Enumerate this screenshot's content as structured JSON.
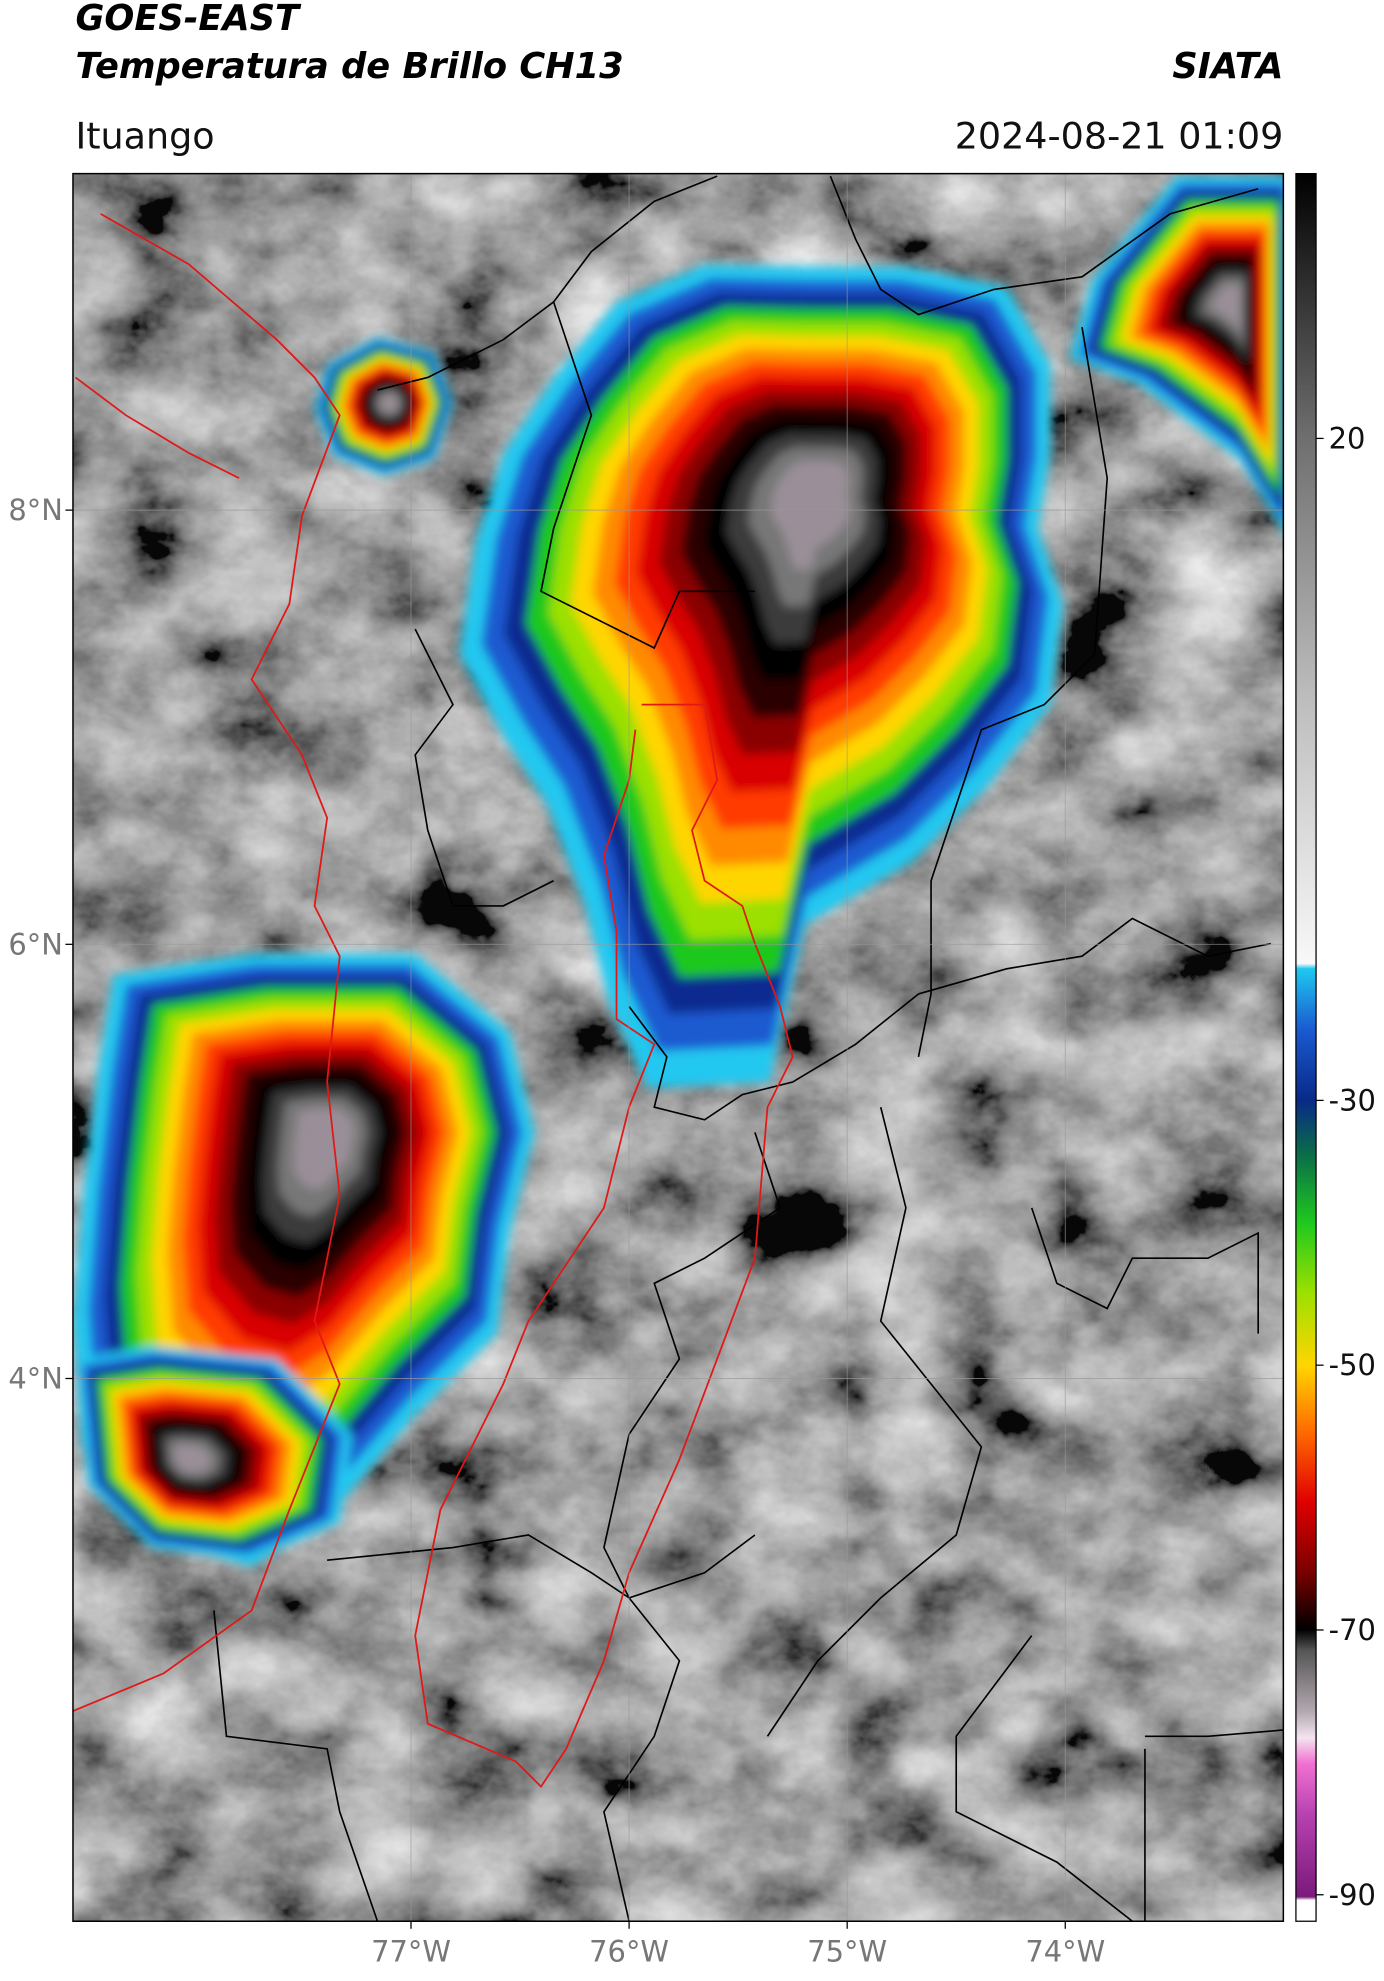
{
  "header": {
    "title_line1": "GOES-EAST",
    "title_line2": "Temperatura de Brillo CH13",
    "source": "SIATA",
    "location": "Ituango",
    "datetime": "2024-08-21 01:09"
  },
  "map": {
    "xlim": [
      -78.55,
      -73.0
    ],
    "ylim": [
      1.5,
      9.55
    ],
    "xticks": [
      {
        "value": -77,
        "label": "77°W"
      },
      {
        "value": -76,
        "label": "76°W"
      },
      {
        "value": -75,
        "label": "75°W"
      },
      {
        "value": -74,
        "label": "74°W"
      }
    ],
    "yticks": [
      {
        "value": 8,
        "label": "8°N"
      },
      {
        "value": 6,
        "label": "6°N"
      },
      {
        "value": 4,
        "label": "4°N"
      }
    ]
  },
  "colorbar": {
    "lim": [
      -92,
      40
    ],
    "ticks": [
      20,
      -30,
      -50,
      -70,
      -90
    ]
  }
}
